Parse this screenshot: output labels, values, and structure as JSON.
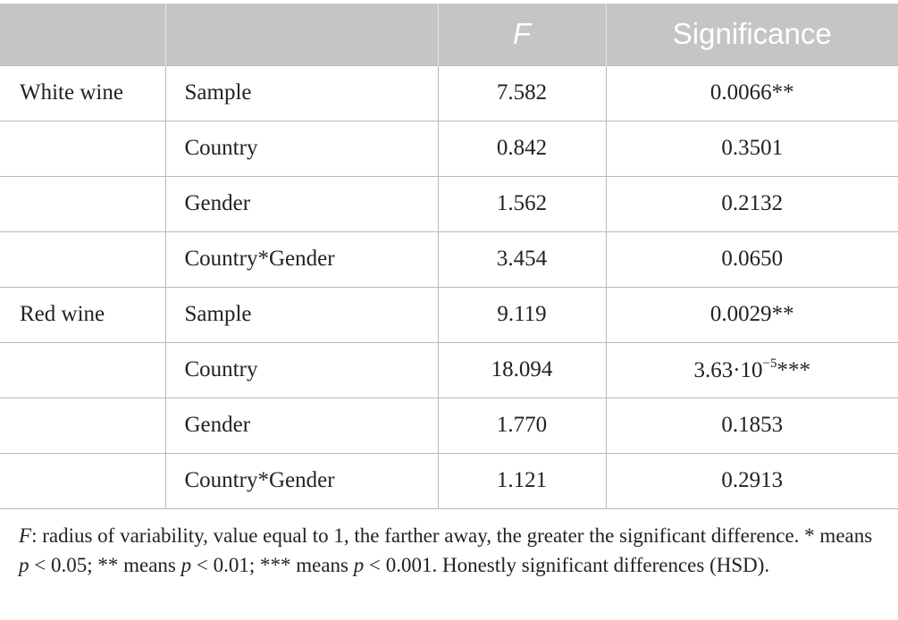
{
  "table": {
    "headers": [
      "",
      "",
      "F",
      "Significance"
    ],
    "groups": [
      {
        "label": "White wine",
        "rows": [
          {
            "factor": "Sample",
            "f": "7.582",
            "sig": "0.0066**"
          },
          {
            "factor": "Country",
            "f": "0.842",
            "sig": "0.3501"
          },
          {
            "factor": "Gender",
            "f": "1.562",
            "sig": "0.2132"
          },
          {
            "factor": "Country*Gender",
            "f": "3.454",
            "sig": "0.0650"
          }
        ]
      },
      {
        "label": "Red wine",
        "rows": [
          {
            "factor": "Sample",
            "f": "9.119",
            "sig": "0.0029**"
          },
          {
            "factor": "Country",
            "f": "18.094",
            "sig_base": "3.63·10",
            "sig_exp": "−5",
            "sig_stars": "***"
          },
          {
            "factor": "Gender",
            "f": "1.770",
            "sig": "0.1853"
          },
          {
            "factor": "Country*Gender",
            "f": "1.121",
            "sig": "0.2913"
          }
        ]
      }
    ]
  },
  "footnote": {
    "f_symbol": "F",
    "text_1": ": radius of variability, value equal to 1, the farther away, the greater the significant difference. * means ",
    "p": "p",
    "t_005": " < 0.05; ** means ",
    "t_001": " < 0.01; *** means ",
    "t_0001": " < 0.001. Honestly significant differences (HSD)."
  }
}
